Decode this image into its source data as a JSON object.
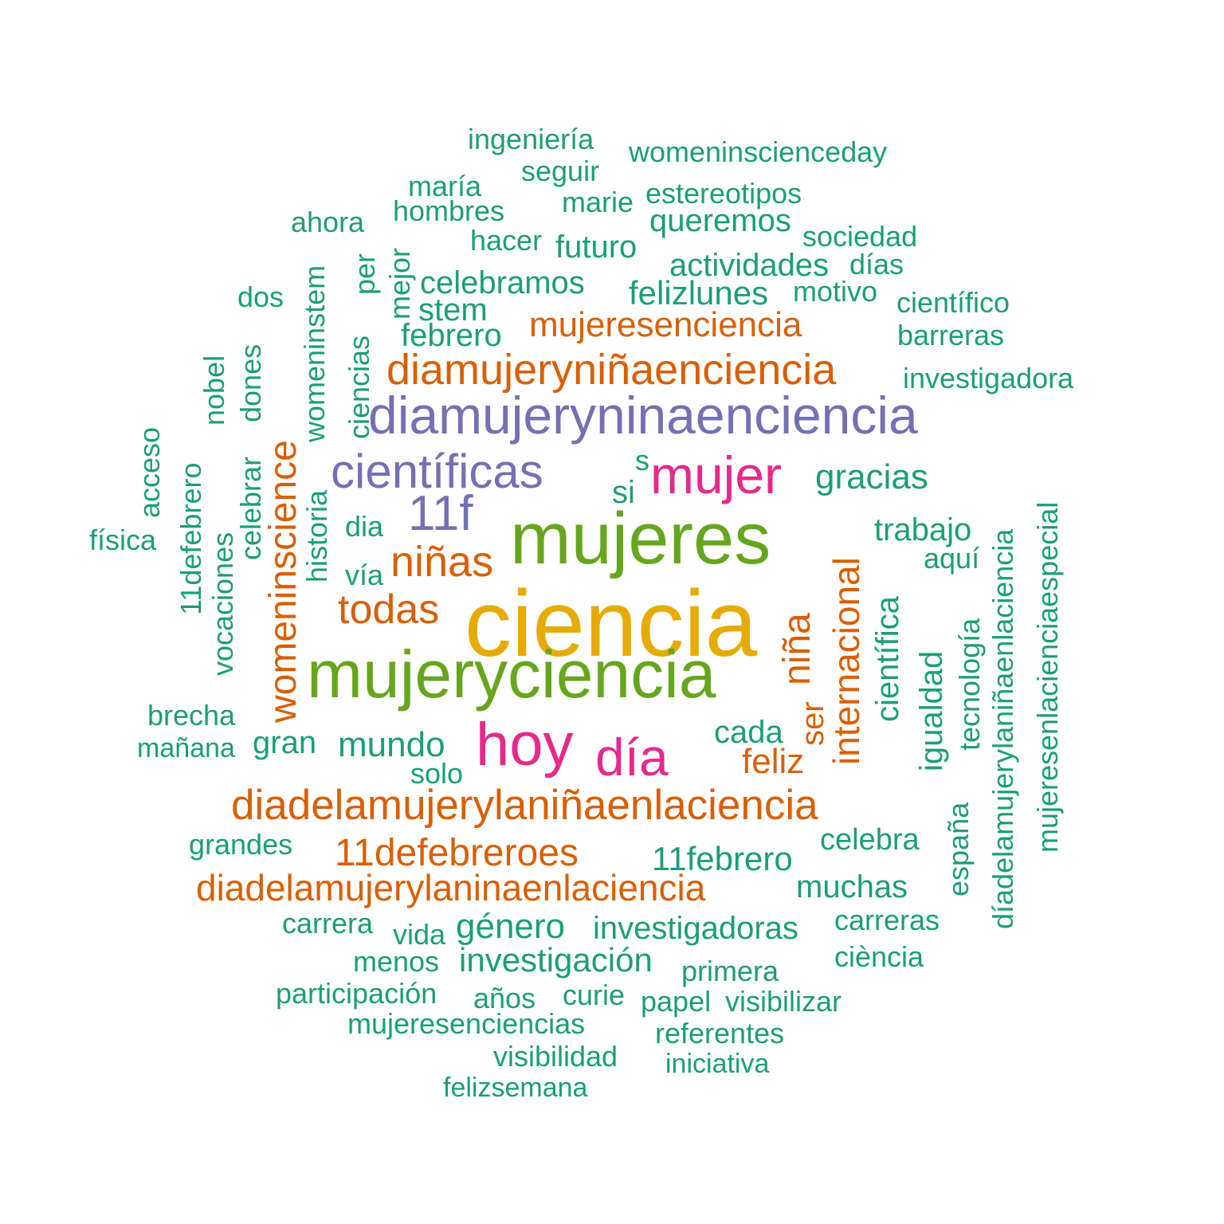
{
  "palette": {
    "teal": "#1b9e77",
    "orange": "#d95f02",
    "purple": "#7570b3",
    "magenta": "#e7298a",
    "green": "#66a61e",
    "gold": "#e6ab02"
  },
  "words": [
    {
      "text": "ciencia",
      "color": "gold"
    },
    {
      "text": "mujeres",
      "color": "green"
    },
    {
      "text": "mujeryciencia",
      "color": "green"
    },
    {
      "text": "diamujeryninaenciencia",
      "color": "purple"
    },
    {
      "text": "científicas",
      "color": "purple"
    },
    {
      "text": "11f",
      "color": "purple"
    },
    {
      "text": "mujer",
      "color": "magenta"
    },
    {
      "text": "hoy",
      "color": "magenta"
    },
    {
      "text": "día",
      "color": "magenta"
    },
    {
      "text": "diamujeryniñaenciencia",
      "color": "orange"
    },
    {
      "text": "diadelamujerylaniñaenlaciencia",
      "color": "orange"
    },
    {
      "text": "diadelamujerylaninaenlaciencia",
      "color": "orange"
    },
    {
      "text": "11defebreroes",
      "color": "orange"
    },
    {
      "text": "mujeresenciencia",
      "color": "orange"
    },
    {
      "text": "womeninscience",
      "color": "orange"
    },
    {
      "text": "internacional",
      "color": "orange"
    },
    {
      "text": "niña",
      "color": "orange"
    },
    {
      "text": "niñas",
      "color": "orange"
    },
    {
      "text": "todas",
      "color": "orange"
    },
    {
      "text": "feliz",
      "color": "orange"
    },
    {
      "text": "ser",
      "color": "orange"
    },
    {
      "text": "11febrero",
      "color": "teal"
    },
    {
      "text": "ingeniería",
      "color": "teal"
    },
    {
      "text": "womeninscienceday",
      "color": "teal"
    },
    {
      "text": "seguir",
      "color": "teal"
    },
    {
      "text": "maría",
      "color": "teal"
    },
    {
      "text": "estereotipos",
      "color": "teal"
    },
    {
      "text": "hombres",
      "color": "teal"
    },
    {
      "text": "marie",
      "color": "teal"
    },
    {
      "text": "ahora",
      "color": "teal"
    },
    {
      "text": "queremos",
      "color": "teal"
    },
    {
      "text": "hacer",
      "color": "teal"
    },
    {
      "text": "futuro",
      "color": "teal"
    },
    {
      "text": "sociedad",
      "color": "teal"
    },
    {
      "text": "actividades",
      "color": "teal"
    },
    {
      "text": "días",
      "color": "teal"
    },
    {
      "text": "celebramos",
      "color": "teal"
    },
    {
      "text": "felizlunes",
      "color": "teal"
    },
    {
      "text": "motivo",
      "color": "teal"
    },
    {
      "text": "dos",
      "color": "teal"
    },
    {
      "text": "stem",
      "color": "teal"
    },
    {
      "text": "científico",
      "color": "teal"
    },
    {
      "text": "febrero",
      "color": "teal"
    },
    {
      "text": "barreras",
      "color": "teal"
    },
    {
      "text": "investigadora",
      "color": "teal"
    },
    {
      "text": "gracias",
      "color": "teal"
    },
    {
      "text": "s",
      "color": "teal"
    },
    {
      "text": "si",
      "color": "teal"
    },
    {
      "text": "dia",
      "color": "teal"
    },
    {
      "text": "trabajo",
      "color": "teal"
    },
    {
      "text": "física",
      "color": "teal"
    },
    {
      "text": "aquí",
      "color": "teal"
    },
    {
      "text": "vía",
      "color": "teal"
    },
    {
      "text": "brecha",
      "color": "teal"
    },
    {
      "text": "cada",
      "color": "teal"
    },
    {
      "text": "mañana",
      "color": "teal"
    },
    {
      "text": "gran",
      "color": "teal"
    },
    {
      "text": "mundo",
      "color": "teal"
    },
    {
      "text": "solo",
      "color": "teal"
    },
    {
      "text": "grandes",
      "color": "teal"
    },
    {
      "text": "celebra",
      "color": "teal"
    },
    {
      "text": "muchas",
      "color": "teal"
    },
    {
      "text": "carrera",
      "color": "teal"
    },
    {
      "text": "vida",
      "color": "teal"
    },
    {
      "text": "género",
      "color": "teal"
    },
    {
      "text": "investigadoras",
      "color": "teal"
    },
    {
      "text": "carreras",
      "color": "teal"
    },
    {
      "text": "menos",
      "color": "teal"
    },
    {
      "text": "investigación",
      "color": "teal"
    },
    {
      "text": "ciència",
      "color": "teal"
    },
    {
      "text": "primera",
      "color": "teal"
    },
    {
      "text": "participación",
      "color": "teal"
    },
    {
      "text": "años",
      "color": "teal"
    },
    {
      "text": "curie",
      "color": "teal"
    },
    {
      "text": "papel",
      "color": "teal"
    },
    {
      "text": "visibilizar",
      "color": "teal"
    },
    {
      "text": "mujeresenciencias",
      "color": "teal"
    },
    {
      "text": "referentes",
      "color": "teal"
    },
    {
      "text": "visibilidad",
      "color": "teal"
    },
    {
      "text": "iniciativa",
      "color": "teal"
    },
    {
      "text": "felizsemana",
      "color": "teal"
    },
    {
      "text": "mejor",
      "color": "teal"
    },
    {
      "text": "per",
      "color": "teal"
    },
    {
      "text": "ciencias",
      "color": "teal"
    },
    {
      "text": "womeninstem",
      "color": "teal"
    },
    {
      "text": "celebrar",
      "color": "teal"
    },
    {
      "text": "dones",
      "color": "teal"
    },
    {
      "text": "nobel",
      "color": "teal"
    },
    {
      "text": "11defebrero",
      "color": "teal"
    },
    {
      "text": "acceso",
      "color": "teal"
    },
    {
      "text": "vocaciones",
      "color": "teal"
    },
    {
      "text": "historia",
      "color": "teal"
    },
    {
      "text": "científica",
      "color": "teal"
    },
    {
      "text": "igualdad",
      "color": "teal"
    },
    {
      "text": "tecnología",
      "color": "teal"
    },
    {
      "text": "díadelamujerylaniñaenlaciencia",
      "color": "teal"
    },
    {
      "text": "mujeresenlacienciaespecial",
      "color": "teal"
    },
    {
      "text": "españa",
      "color": "teal"
    }
  ]
}
